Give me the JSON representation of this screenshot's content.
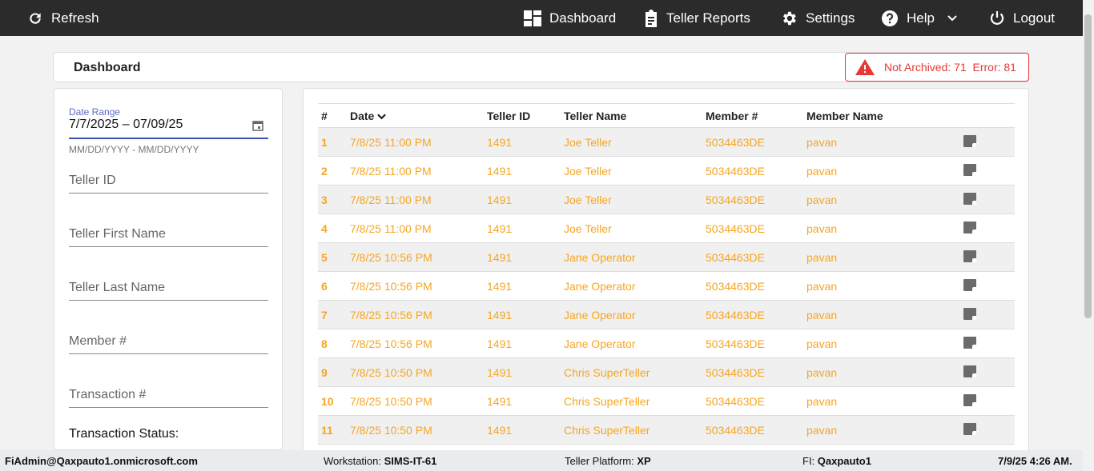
{
  "topbar": {
    "refresh": "Refresh",
    "dashboard": "Dashboard",
    "teller_reports": "Teller Reports",
    "settings": "Settings",
    "help": "Help",
    "logout": "Logout"
  },
  "header": {
    "title": "Dashboard",
    "alert": "Not Archived: 71  Error: 81"
  },
  "filters": {
    "date_label": "Date Range",
    "date_value": "7/7/2025 – 07/09/25",
    "date_hint": "MM/DD/YYYY - MM/DD/YYYY",
    "teller_id": "Teller ID",
    "teller_first": "Teller First Name",
    "teller_last": "Teller Last Name",
    "member": "Member #",
    "transaction": "Transaction #",
    "status": "Transaction Status:"
  },
  "table": {
    "headers": [
      "#",
      "Date",
      "Teller ID",
      "Teller Name",
      "Member #",
      "Member Name"
    ],
    "rows": [
      [
        "1",
        "7/8/25 11:00 PM",
        "1491",
        "Joe Teller",
        "5034463DE",
        "pavan"
      ],
      [
        "2",
        "7/8/25 11:00 PM",
        "1491",
        "Joe Teller",
        "5034463DE",
        "pavan"
      ],
      [
        "3",
        "7/8/25 11:00 PM",
        "1491",
        "Joe Teller",
        "5034463DE",
        "pavan"
      ],
      [
        "4",
        "7/8/25 11:00 PM",
        "1491",
        "Joe Teller",
        "5034463DE",
        "pavan"
      ],
      [
        "5",
        "7/8/25 10:56 PM",
        "1491",
        "Jane Operator",
        "5034463DE",
        "pavan"
      ],
      [
        "6",
        "7/8/25 10:56 PM",
        "1491",
        "Jane Operator",
        "5034463DE",
        "pavan"
      ],
      [
        "7",
        "7/8/25 10:56 PM",
        "1491",
        "Jane Operator",
        "5034463DE",
        "pavan"
      ],
      [
        "8",
        "7/8/25 10:56 PM",
        "1491",
        "Jane Operator",
        "5034463DE",
        "pavan"
      ],
      [
        "9",
        "7/8/25 10:50 PM",
        "1491",
        "Chris SuperTeller",
        "5034463DE",
        "pavan"
      ],
      [
        "10",
        "7/8/25 10:50 PM",
        "1491",
        "Chris SuperTeller",
        "5034463DE",
        "pavan"
      ],
      [
        "11",
        "7/8/25 10:50 PM",
        "1491",
        "Chris SuperTeller",
        "5034463DE",
        "pavan"
      ]
    ]
  },
  "footer": {
    "user": "FiAdmin@Qaxpauto1.onmicrosoft.com",
    "workstation_label": "Workstation: ",
    "workstation": "SIMS-IT-61",
    "platform_label": "Teller Platform: ",
    "platform": "XP",
    "fi_label": "FI: ",
    "fi": "Qaxpauto1",
    "datetime": "7/9/25 4:26 AM."
  },
  "colors": {
    "accent": "#f5a623",
    "alert": "#e53935",
    "topbar": "#2b2b2b"
  }
}
